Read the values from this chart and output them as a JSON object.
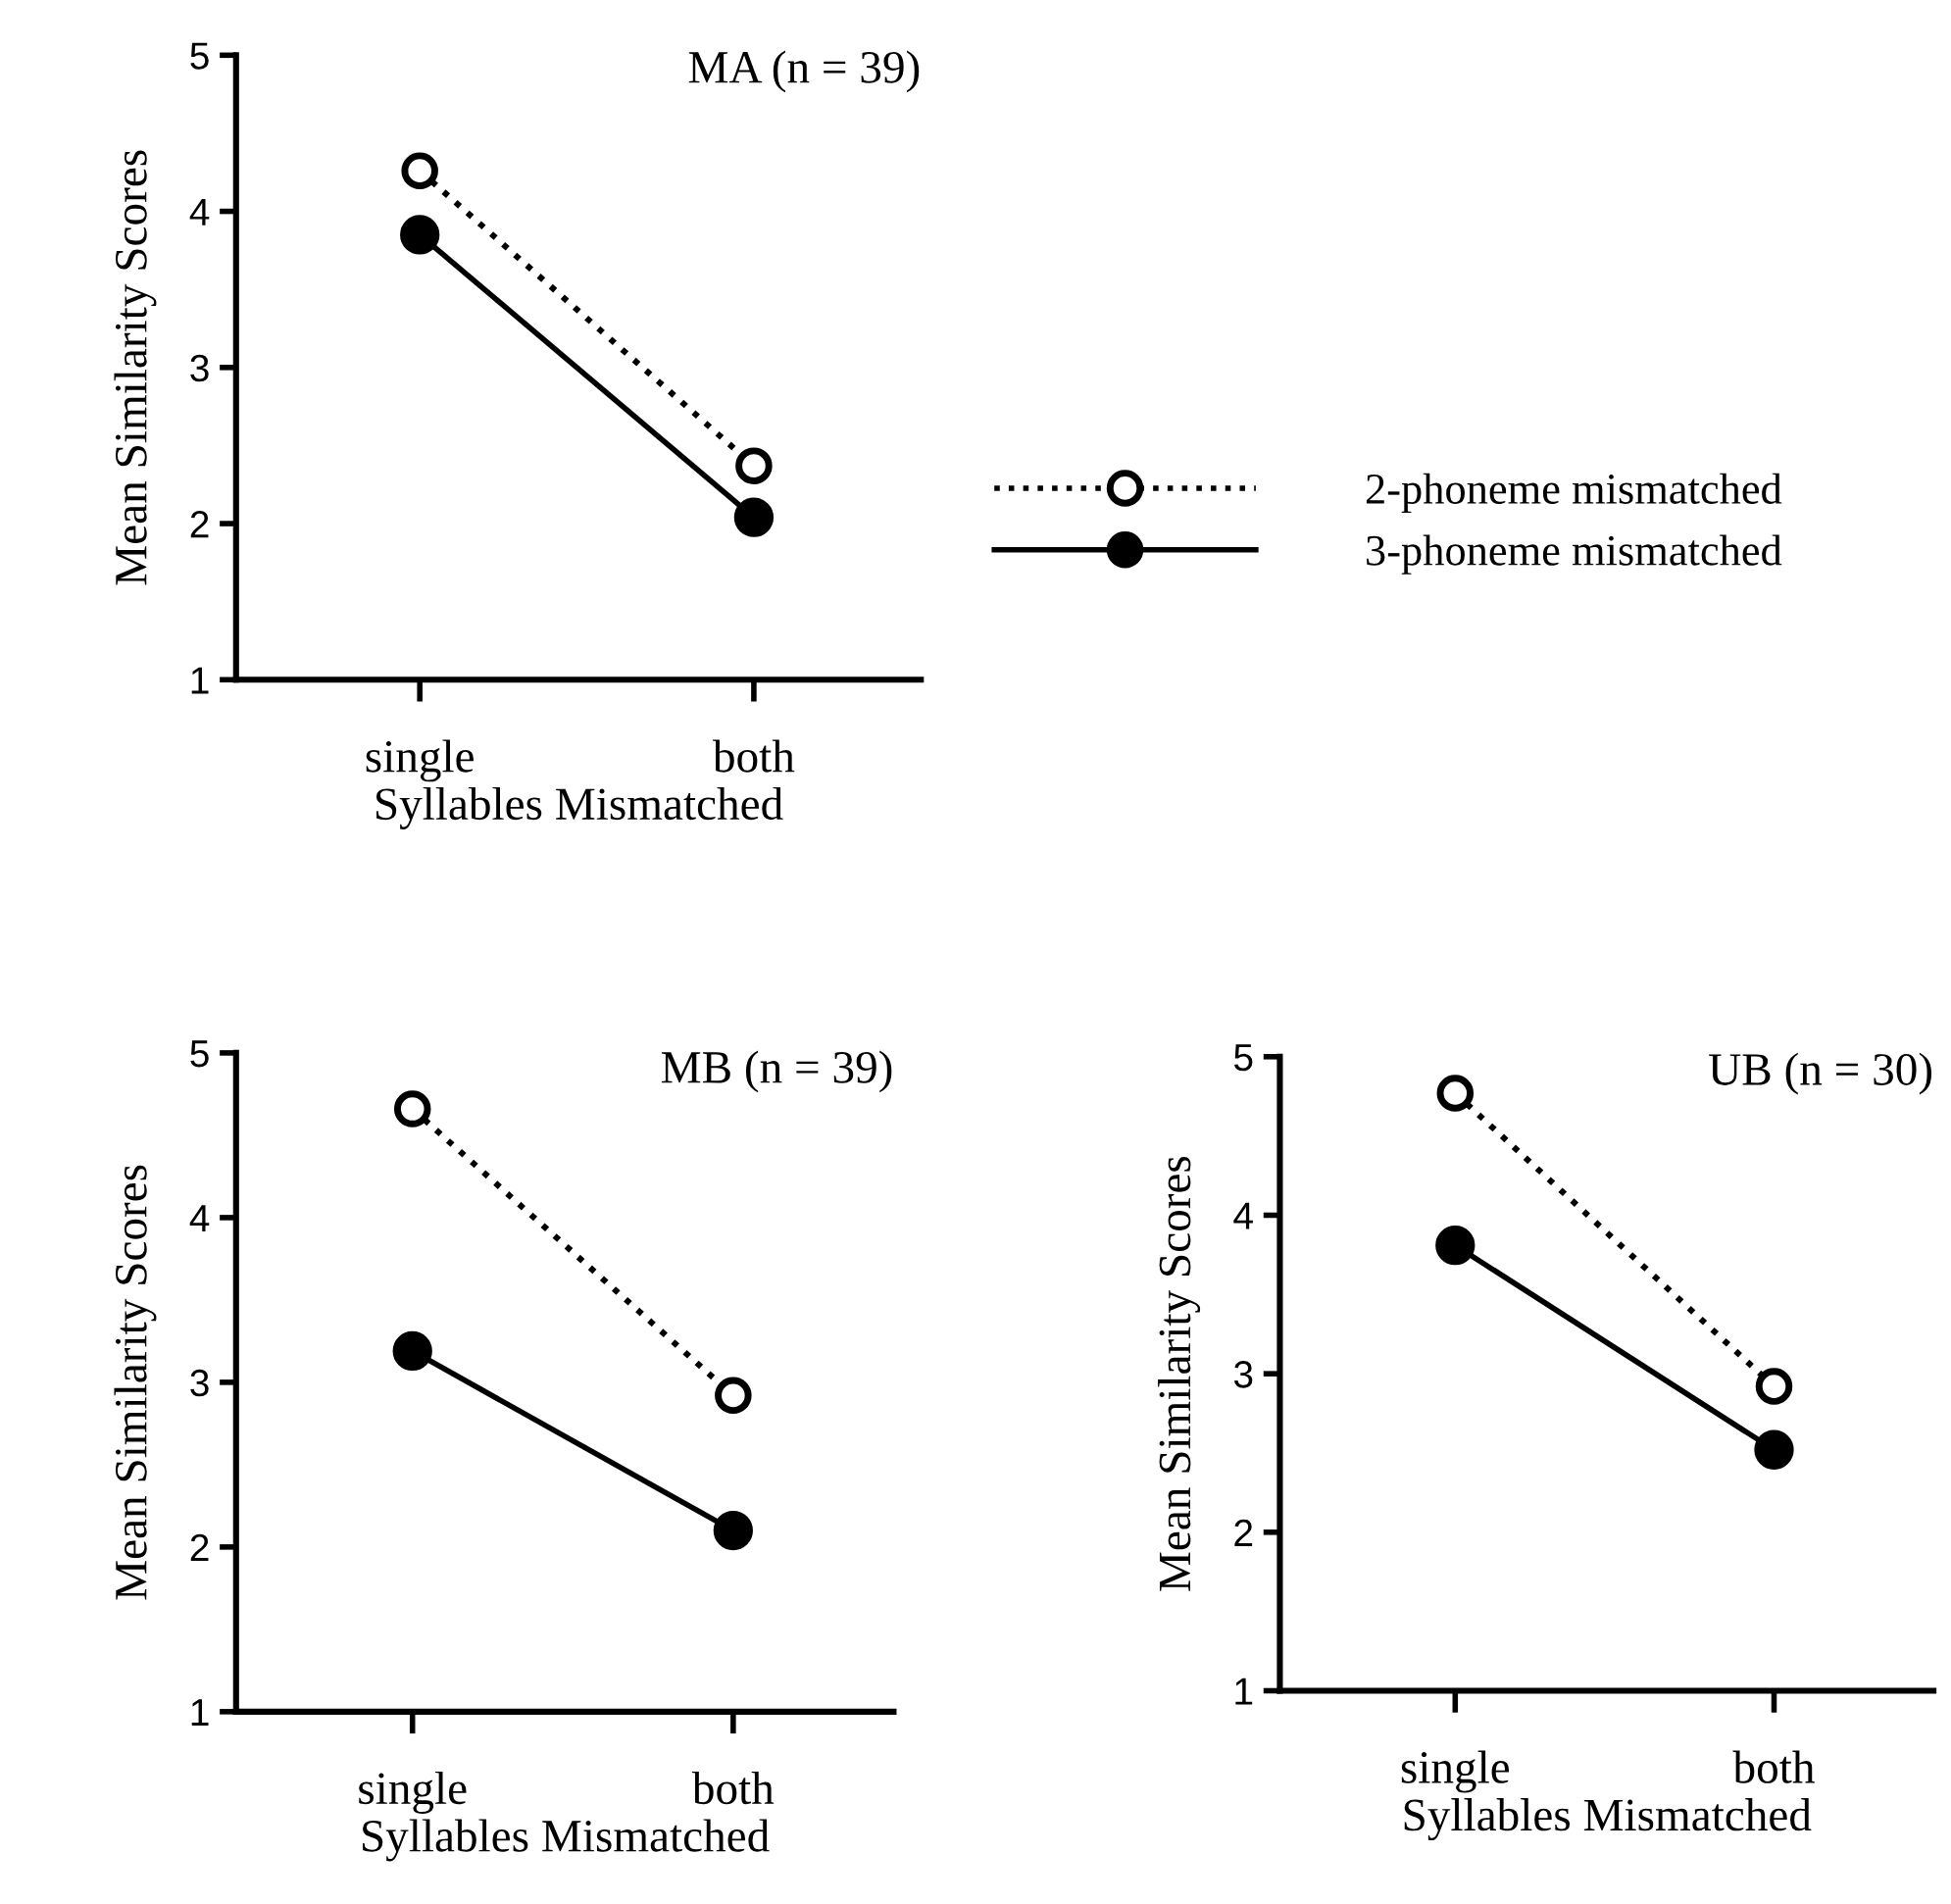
{
  "chart_data": [
    {
      "type": "line",
      "title": "MA (n = 39)",
      "xlabel": "Syllables Mismatched",
      "ylabel": "Mean Similarity Scores",
      "categories": [
        "single",
        "both"
      ],
      "ylim": [
        1,
        5
      ],
      "yticks": [
        1,
        2,
        3,
        4,
        5
      ],
      "marker": "circle",
      "legend": "right",
      "grid": false,
      "series": [
        {
          "name": "2-phoneme mismatched",
          "color": "#000000",
          "line_style": "dotted",
          "values": [
            4.26,
            2.37
          ]
        },
        {
          "name": "3-phoneme mismatched",
          "color": "#000000",
          "line_style": "solid",
          "values": [
            3.85,
            2.04
          ]
        }
      ]
    },
    {
      "type": "line",
      "title": "MB (n = 39)",
      "xlabel": "Syllables Mismatched",
      "ylabel": "Mean Similarity Scores",
      "categories": [
        "single",
        "both"
      ],
      "ylim": [
        1,
        5
      ],
      "yticks": [
        1,
        2,
        3,
        4,
        5
      ],
      "marker": "circle",
      "legend": false,
      "grid": false,
      "series": [
        {
          "color": "#000000",
          "line_style": "dotted",
          "values": [
            4.66,
            2.92
          ]
        },
        {
          "color": "#000000",
          "line_style": "solid",
          "values": [
            3.19,
            2.1
          ]
        }
      ]
    },
    {
      "type": "line",
      "title": "UB (n = 30)",
      "xlabel": "Syllables Mismatched",
      "ylabel": "Mean Similarity Scores",
      "categories": [
        "single",
        "both"
      ],
      "ylim": [
        1,
        5
      ],
      "yticks": [
        1,
        2,
        3,
        4,
        5
      ],
      "marker": "circle",
      "legend": false,
      "grid": false,
      "series": [
        {
          "color": "#000000",
          "line_style": "dotted",
          "values": [
            4.77,
            2.92
          ]
        },
        {
          "color": "#000000",
          "line_style": "solid",
          "values": [
            3.81,
            2.52
          ]
        }
      ]
    }
  ]
}
